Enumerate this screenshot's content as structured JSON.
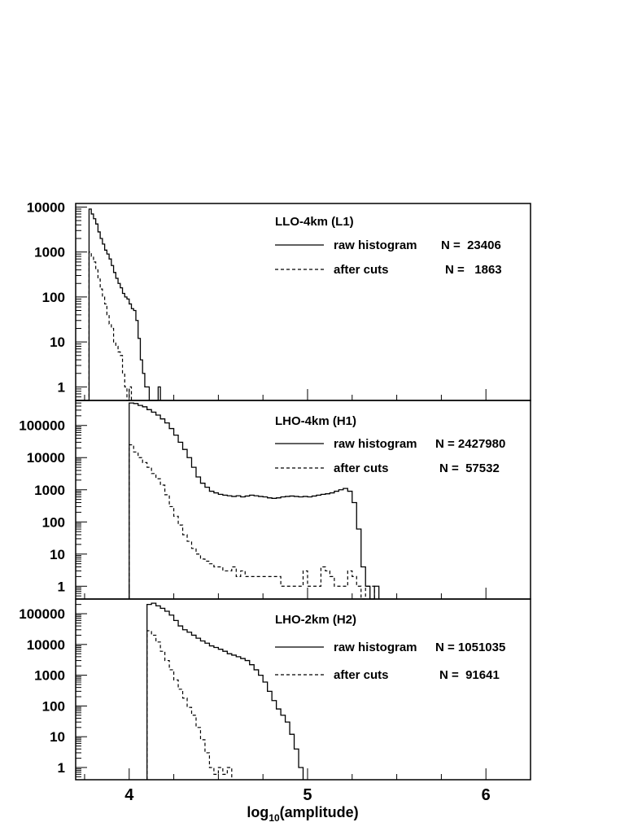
{
  "chart_data": [
    {
      "type": "histogram",
      "title": "LLO-4km (L1)",
      "y_scale": "log",
      "xlim": [
        3.7,
        6.25
      ],
      "ylim": [
        0.5,
        12000
      ],
      "y_ticks": [
        1,
        10,
        100,
        1000,
        10000
      ],
      "y_tick_labels": [
        "1",
        "10",
        "100",
        "1000",
        "10000"
      ],
      "bin_edges_start": 3.7,
      "bin_width": 0.0125,
      "series": [
        {
          "name": "raw histogram",
          "line_style": "solid",
          "count_label": "N =  23406",
          "values": [
            0,
            0,
            0,
            0,
            0,
            0,
            9000,
            7000,
            5500,
            4200,
            2800,
            2000,
            1500,
            1100,
            900,
            700,
            500,
            350,
            260,
            200,
            160,
            120,
            100,
            90,
            70,
            55,
            50,
            30,
            12,
            4,
            2,
            1,
            1,
            0,
            0,
            0,
            0,
            1
          ]
        },
        {
          "name": "after cuts",
          "line_style": "dashed",
          "count_label": "N =   1863",
          "values": [
            0,
            0,
            0,
            0,
            0,
            0,
            1000,
            800,
            600,
            400,
            250,
            150,
            100,
            70,
            40,
            25,
            20,
            10,
            8,
            6,
            5,
            2,
            1,
            0,
            1
          ]
        }
      ]
    },
    {
      "type": "histogram",
      "title": "LHO-4km (H1)",
      "y_scale": "log",
      "xlim": [
        3.7,
        6.25
      ],
      "ylim": [
        0.4,
        600000
      ],
      "y_ticks": [
        1,
        10,
        100,
        1000,
        10000,
        100000
      ],
      "y_tick_labels": [
        "1",
        "10",
        "100",
        "1000",
        "10000",
        "100000"
      ],
      "bin_edges_start": 4.0,
      "bin_width": 0.025,
      "series": [
        {
          "name": "raw histogram",
          "line_style": "solid",
          "count_label": "N = 2427980",
          "values": [
            500000,
            480000,
            420000,
            380000,
            310000,
            260000,
            210000,
            160000,
            120000,
            80000,
            50000,
            30000,
            18000,
            10000,
            5000,
            2500,
            1600,
            1200,
            900,
            800,
            720,
            680,
            650,
            620,
            650,
            600,
            640,
            680,
            650,
            620,
            600,
            560,
            540,
            560,
            600,
            620,
            640,
            620,
            600,
            620,
            600,
            640,
            680,
            720,
            750,
            800,
            900,
            1000,
            1100,
            900,
            400,
            60,
            4,
            1,
            0,
            1
          ]
        },
        {
          "name": "after cuts",
          "line_style": "dashed",
          "count_label": "N =  57532",
          "values": [
            25000,
            15000,
            10000,
            7000,
            5000,
            3200,
            2200,
            1400,
            700,
            300,
            150,
            80,
            40,
            25,
            15,
            10,
            7,
            6,
            5,
            4,
            4,
            3,
            3,
            4,
            2,
            3,
            2,
            2,
            2,
            2,
            2,
            2,
            2,
            2,
            1,
            1,
            1,
            1,
            1,
            3,
            1,
            1,
            1,
            4,
            3,
            2,
            1,
            1,
            1,
            3,
            2,
            1,
            0,
            1,
            1
          ]
        }
      ]
    },
    {
      "type": "histogram",
      "title": "LHO-2km (H2)",
      "y_scale": "log",
      "xlim": [
        3.7,
        6.25
      ],
      "ylim": [
        0.4,
        300000
      ],
      "y_ticks": [
        1,
        10,
        100,
        1000,
        10000,
        100000
      ],
      "y_tick_labels": [
        "1",
        "10",
        "100",
        "1000",
        "10000",
        "100000"
      ],
      "bin_edges_start": 4.1,
      "bin_width": 0.025,
      "series": [
        {
          "name": "raw histogram",
          "line_style": "solid",
          "count_label": "N = 1051035",
          "values": [
            200000,
            220000,
            180000,
            150000,
            120000,
            90000,
            60000,
            40000,
            30000,
            25000,
            20000,
            16000,
            13000,
            11000,
            9000,
            8000,
            7000,
            6000,
            5000,
            4500,
            4000,
            3500,
            3000,
            2200,
            1500,
            1000,
            600,
            300,
            150,
            80,
            50,
            30,
            12,
            4,
            1
          ]
        },
        {
          "name": "after cuts",
          "line_style": "dashed",
          "count_label": "N =  91641",
          "values": [
            28000,
            20000,
            12000,
            6000,
            3000,
            1500,
            700,
            350,
            180,
            90,
            50,
            20,
            8,
            3,
            1,
            0.6,
            1,
            0.6,
            1
          ]
        }
      ]
    }
  ],
  "x_axis": {
    "ticks": [
      4,
      5,
      6
    ],
    "tick_labels": [
      "4",
      "5",
      "6"
    ],
    "label_main": "log",
    "label_sub": "10",
    "label_rest": "(amplitude)"
  }
}
